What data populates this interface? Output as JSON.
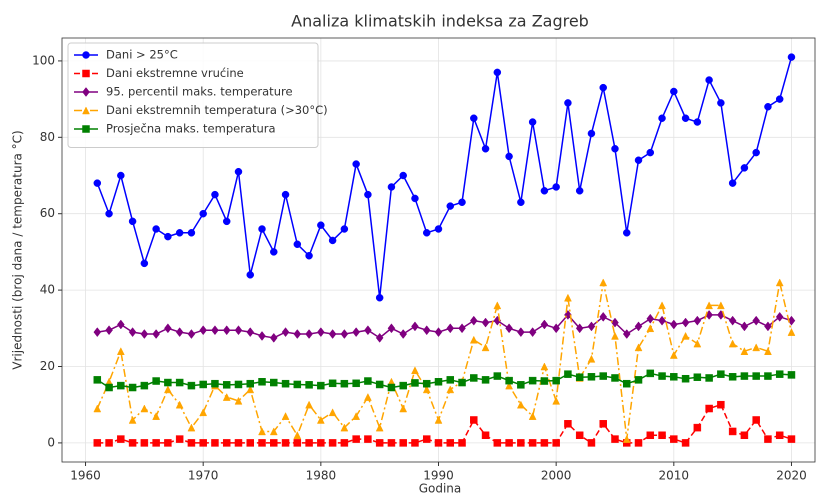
{
  "chart_data": {
    "type": "line",
    "title": "Analiza klimatskih indeksa za Zagreb",
    "x_label": "Godina",
    "y_label": "Vrijednosti (broj dana / temperatura °C)",
    "x": [
      1961,
      1962,
      1963,
      1964,
      1965,
      1966,
      1967,
      1968,
      1969,
      1970,
      1971,
      1972,
      1973,
      1974,
      1975,
      1976,
      1977,
      1978,
      1979,
      1980,
      1981,
      1982,
      1983,
      1984,
      1985,
      1986,
      1987,
      1988,
      1989,
      1990,
      1991,
      1992,
      1993,
      1994,
      1995,
      1996,
      1997,
      1998,
      1999,
      2000,
      2001,
      2002,
      2003,
      2004,
      2005,
      2006,
      2007,
      2008,
      2009,
      2010,
      2011,
      2012,
      2013,
      2014,
      2015,
      2016,
      2017,
      2018,
      2019,
      2020
    ],
    "series": [
      {
        "name": "Dani > 25°C",
        "color": "#0000ff",
        "marker": "circle",
        "line_style": "solid",
        "values": [
          68,
          60,
          70,
          58,
          47,
          56,
          54,
          55,
          55,
          60,
          65,
          58,
          71,
          44,
          56,
          50,
          65,
          52,
          49,
          57,
          53,
          56,
          73,
          65,
          38,
          67,
          70,
          64,
          55,
          56,
          62,
          63,
          85,
          77,
          97,
          75,
          63,
          84,
          66,
          67,
          89,
          66,
          81,
          93,
          77,
          55,
          74,
          76,
          85,
          92,
          85,
          84,
          95,
          89,
          68,
          72,
          76,
          88,
          90,
          101
        ]
      },
      {
        "name": "Dani ekstremne vrućine",
        "color": "#ff0000",
        "marker": "square",
        "line_style": "dashed",
        "values": [
          0,
          0,
          1,
          0,
          0,
          0,
          0,
          1,
          0,
          0,
          0,
          0,
          0,
          0,
          0,
          0,
          0,
          0,
          0,
          0,
          0,
          0,
          1,
          1,
          0,
          0,
          0,
          0,
          1,
          0,
          0,
          0,
          6,
          2,
          0,
          0,
          0,
          0,
          0,
          0,
          5,
          2,
          0,
          5,
          1,
          0,
          0,
          2,
          2,
          1,
          0,
          4,
          9,
          10,
          3,
          2,
          6,
          1,
          2,
          1
        ]
      },
      {
        "name": "95. percentil maks. temperature",
        "color": "#800080",
        "marker": "diamond",
        "line_style": "solid",
        "values": [
          29,
          29.5,
          31,
          29,
          28.5,
          28.5,
          30,
          29,
          28.5,
          29.5,
          29.5,
          29.5,
          29.5,
          29,
          28,
          27.5,
          29,
          28.5,
          28.5,
          29,
          28.5,
          28.5,
          29,
          29.5,
          27.5,
          30,
          28.5,
          30.5,
          29.5,
          29,
          30,
          30,
          32,
          31.5,
          32,
          30,
          29,
          29,
          31,
          30,
          33.5,
          30,
          30.5,
          33,
          31.5,
          28.5,
          30.5,
          32.5,
          32,
          31,
          31.5,
          32,
          33.5,
          33.5,
          32,
          30.5,
          32,
          30.5,
          33,
          32
        ]
      },
      {
        "name": "Dani ekstremnih temperatura (>30°C)",
        "color": "#ffa500",
        "marker": "triangle",
        "line_style": "dashdot",
        "values": [
          9,
          16,
          24,
          6,
          9,
          7,
          14,
          10,
          4,
          8,
          15,
          12,
          11,
          14,
          3,
          3,
          7,
          2,
          10,
          6,
          8,
          4,
          7,
          12,
          4,
          16,
          9,
          19,
          14,
          6,
          14,
          16,
          27,
          25,
          36,
          15,
          10,
          7,
          20,
          11,
          38,
          17,
          22,
          42,
          28,
          1,
          25,
          30,
          36,
          23,
          28,
          26,
          36,
          36,
          26,
          24,
          25,
          24,
          42,
          29
        ]
      },
      {
        "name": "Prosječna maks. temperatura",
        "color": "#008000",
        "marker": "square",
        "line_style": "solid",
        "values": [
          16.5,
          14.5,
          15,
          14.5,
          15,
          16.2,
          15.8,
          15.8,
          15,
          15.3,
          15.5,
          15.2,
          15.3,
          15.5,
          16,
          15.8,
          15.5,
          15.3,
          15.2,
          15,
          15.6,
          15.5,
          15.6,
          16.2,
          15.3,
          14.5,
          15,
          15.7,
          15.5,
          16,
          16.5,
          15.8,
          17,
          16.5,
          17.5,
          16.3,
          15.2,
          16.3,
          16.2,
          16.3,
          18,
          17.2,
          17.3,
          17.5,
          17,
          15.5,
          16.5,
          18.2,
          17.5,
          17.3,
          16.8,
          17.2,
          17,
          18,
          17.3,
          17.5,
          17.5,
          17.5,
          18,
          17.8
        ]
      }
    ],
    "xlim": [
      1958,
      2022
    ],
    "ylim": [
      -5,
      106
    ],
    "xticks": [
      1960,
      1970,
      1980,
      1990,
      2000,
      2010,
      2020
    ],
    "yticks": [
      0,
      20,
      40,
      60,
      80,
      100
    ],
    "grid": true,
    "legend": "upper left"
  }
}
